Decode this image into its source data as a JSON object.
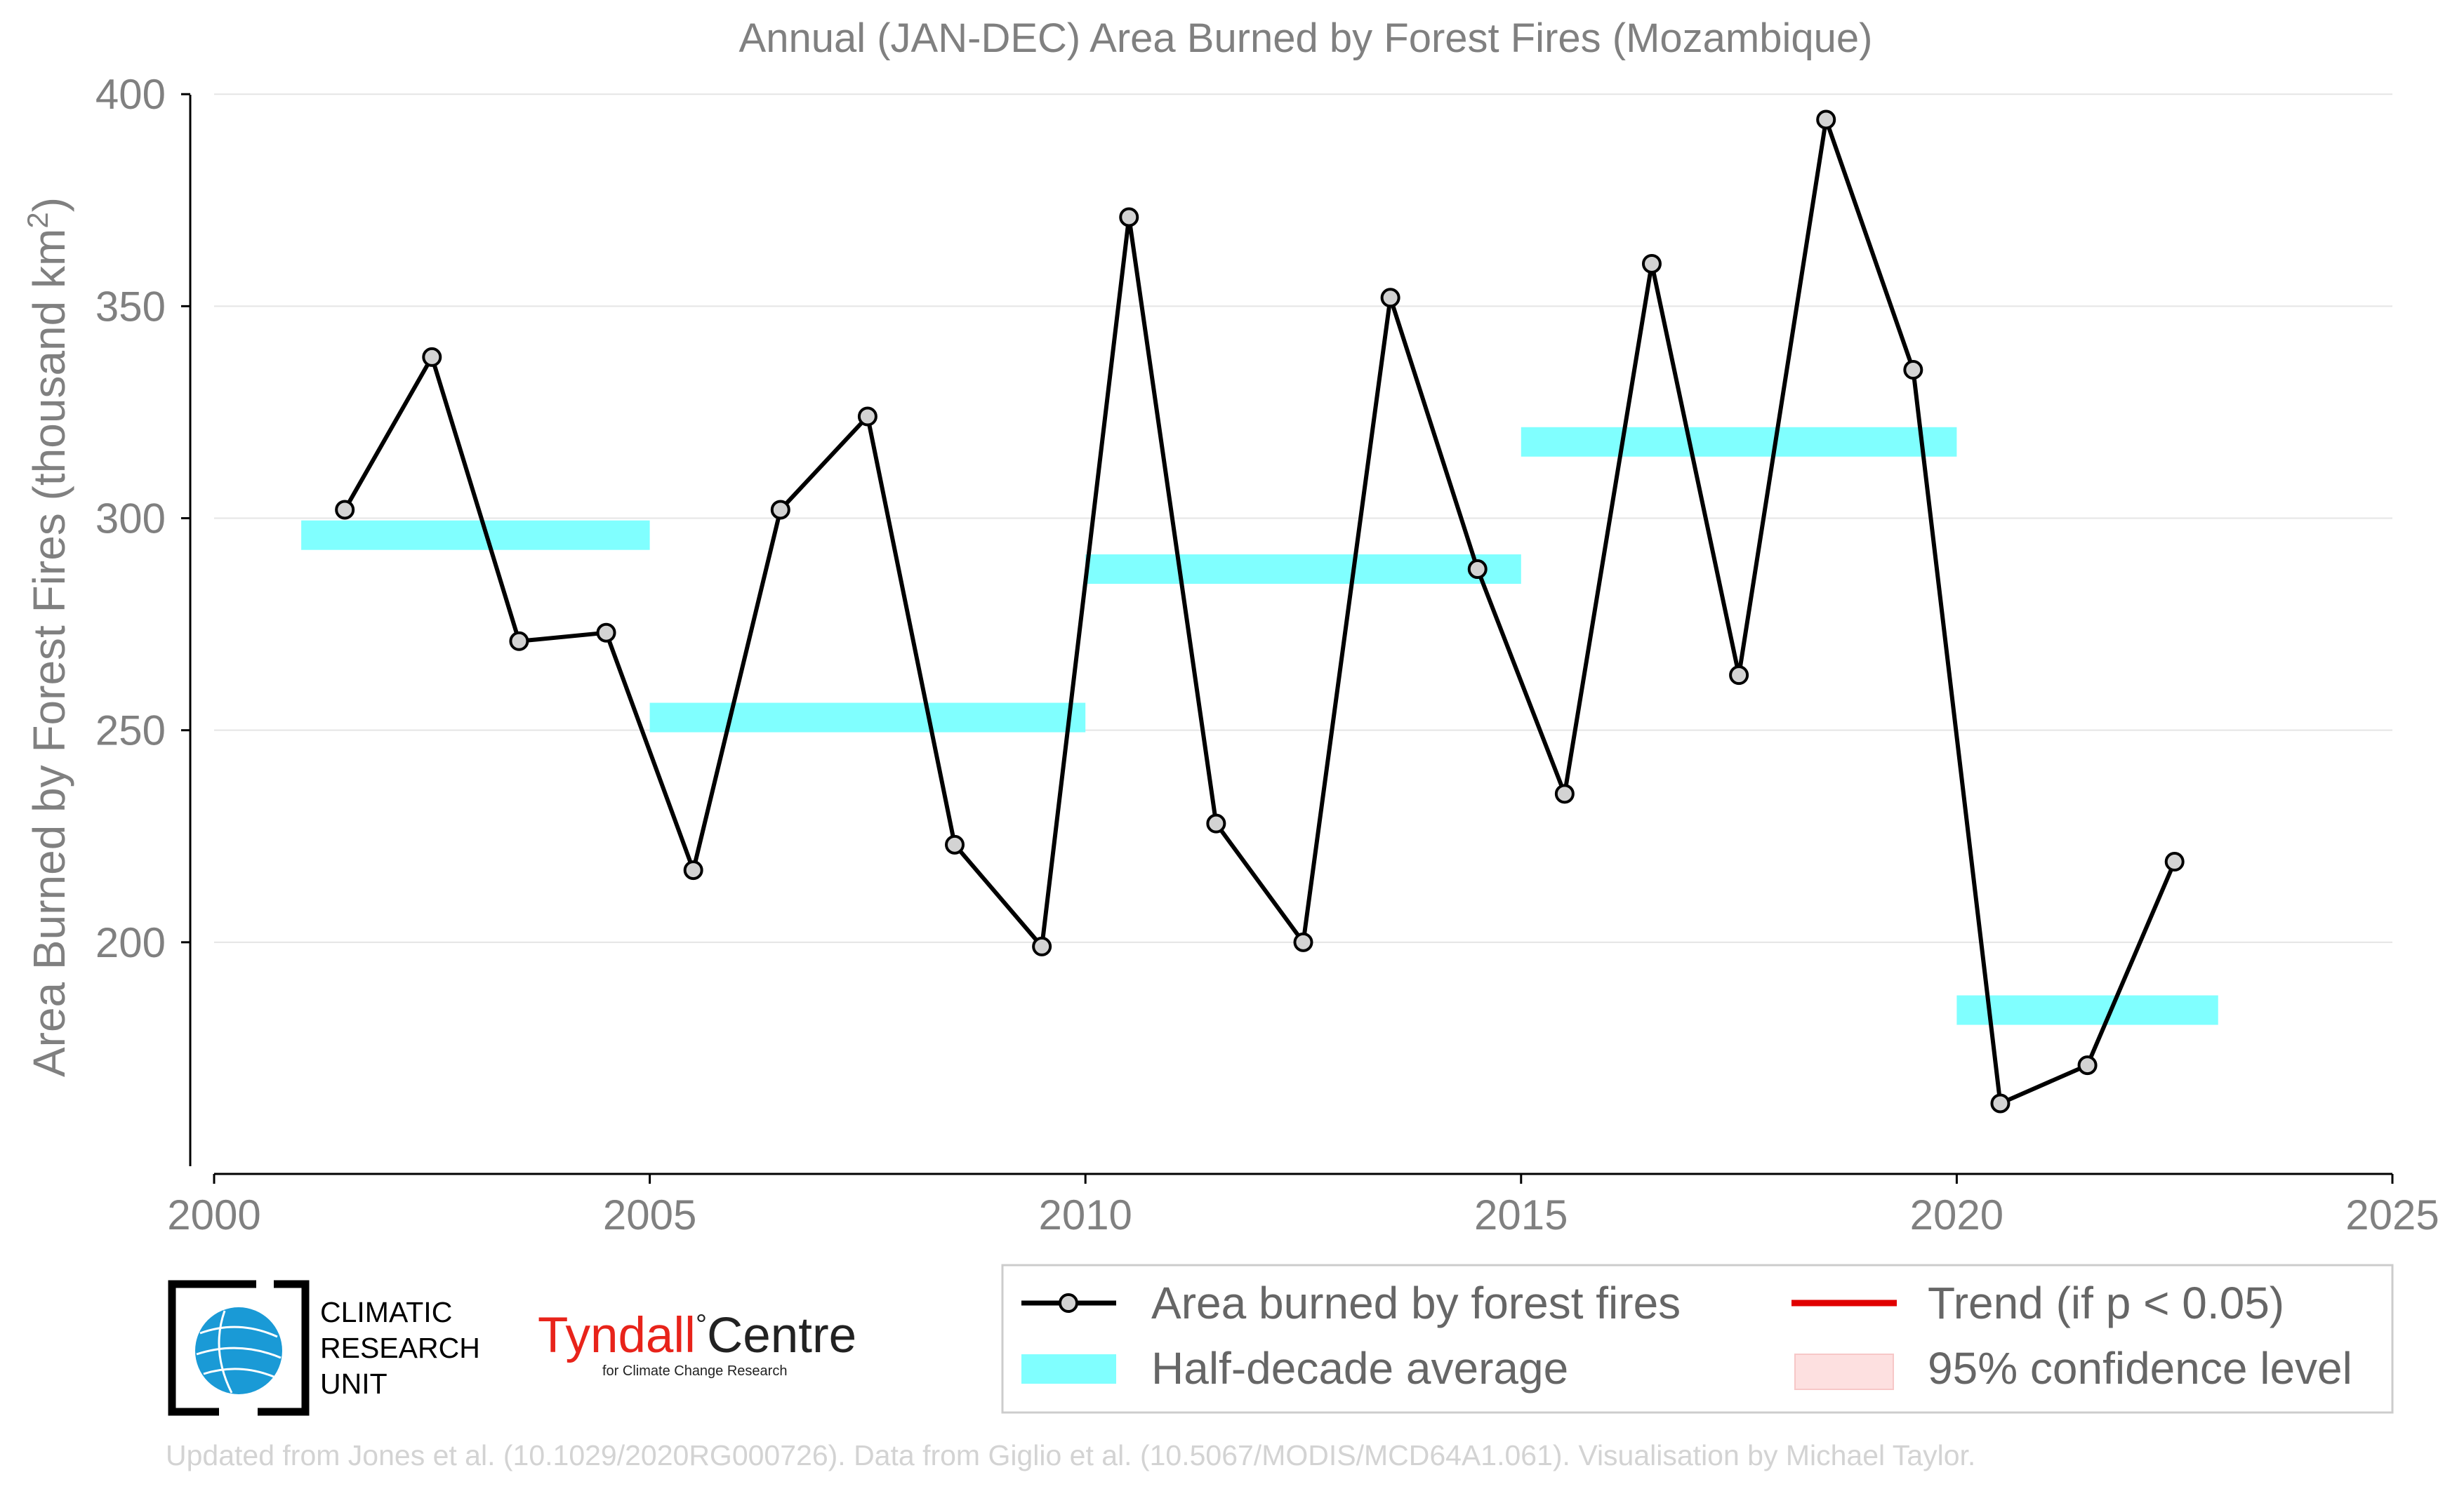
{
  "chart_data": {
    "type": "line",
    "title": "Annual (JAN-DEC) Area Burned by Forest Fires (Mozambique)",
    "xlabel": "",
    "ylabel_main": "Area Burned by Forest Fires (thousand km",
    "ylabel_sup": "2",
    "ylabel_close": ")",
    "xlim": [
      2000,
      2025
    ],
    "ylim": [
      150,
      405
    ],
    "x_ticks": [
      2000,
      2005,
      2010,
      2015,
      2020,
      2025
    ],
    "y_ticks": [
      200,
      250,
      300,
      350,
      400
    ],
    "grid": "horizontal",
    "legend_position": "bottom",
    "series": [
      {
        "name": "Area burned by forest fires",
        "color": "#000000",
        "marker_fill": "#d3d3d3",
        "x": [
          2001.5,
          2002.5,
          2003.5,
          2004.5,
          2005.5,
          2006.5,
          2007.5,
          2008.5,
          2009.5,
          2010.5,
          2011.5,
          2012.5,
          2013.5,
          2014.5,
          2015.5,
          2016.5,
          2017.5,
          2018.5,
          2019.5,
          2020.5,
          2021.5,
          2022.5
        ],
        "y": [
          302,
          338,
          271,
          273,
          217,
          302,
          324,
          223,
          199,
          371,
          228,
          200,
          352,
          288,
          235,
          360,
          263,
          394,
          335,
          162,
          171,
          219
        ]
      }
    ],
    "half_decade_average": {
      "name": "Half-decade average",
      "color": "#80ffff",
      "segments": [
        {
          "x_start": 2001,
          "x_end": 2005,
          "value": 296
        },
        {
          "x_start": 2005,
          "x_end": 2010,
          "value": 253
        },
        {
          "x_start": 2010,
          "x_end": 2015,
          "value": 288
        },
        {
          "x_start": 2015,
          "x_end": 2020,
          "value": 318
        },
        {
          "x_start": 2020,
          "x_end": 2023,
          "value": 184
        }
      ]
    },
    "legend": [
      {
        "label": "Area burned by forest fires",
        "kind": "line-marker",
        "color": "#000000"
      },
      {
        "label": "Trend (if p < 0.05)",
        "kind": "line",
        "color": "#e00000"
      },
      {
        "label": "Half-decade average",
        "kind": "band",
        "color": "#80ffff"
      },
      {
        "label": "95% confidence level",
        "kind": "band",
        "color": "#fde0e0"
      }
    ]
  },
  "logos": {
    "cru_lines": [
      "CLIMATIC",
      "RESEARCH",
      "UNIT"
    ],
    "cru_accent": "#1a9ad6",
    "tyndall_name": "Tyndall",
    "tyndall_degree": "°",
    "tyndall_centre": "Centre",
    "tyndall_sub": "for Climate Change Research"
  },
  "credit": "Updated from Jones et al. (10.1029/2020RG000726). Data from Giglio et al. (10.5067/MODIS/MCD64A1.061). Visualisation by Michael Taylor."
}
